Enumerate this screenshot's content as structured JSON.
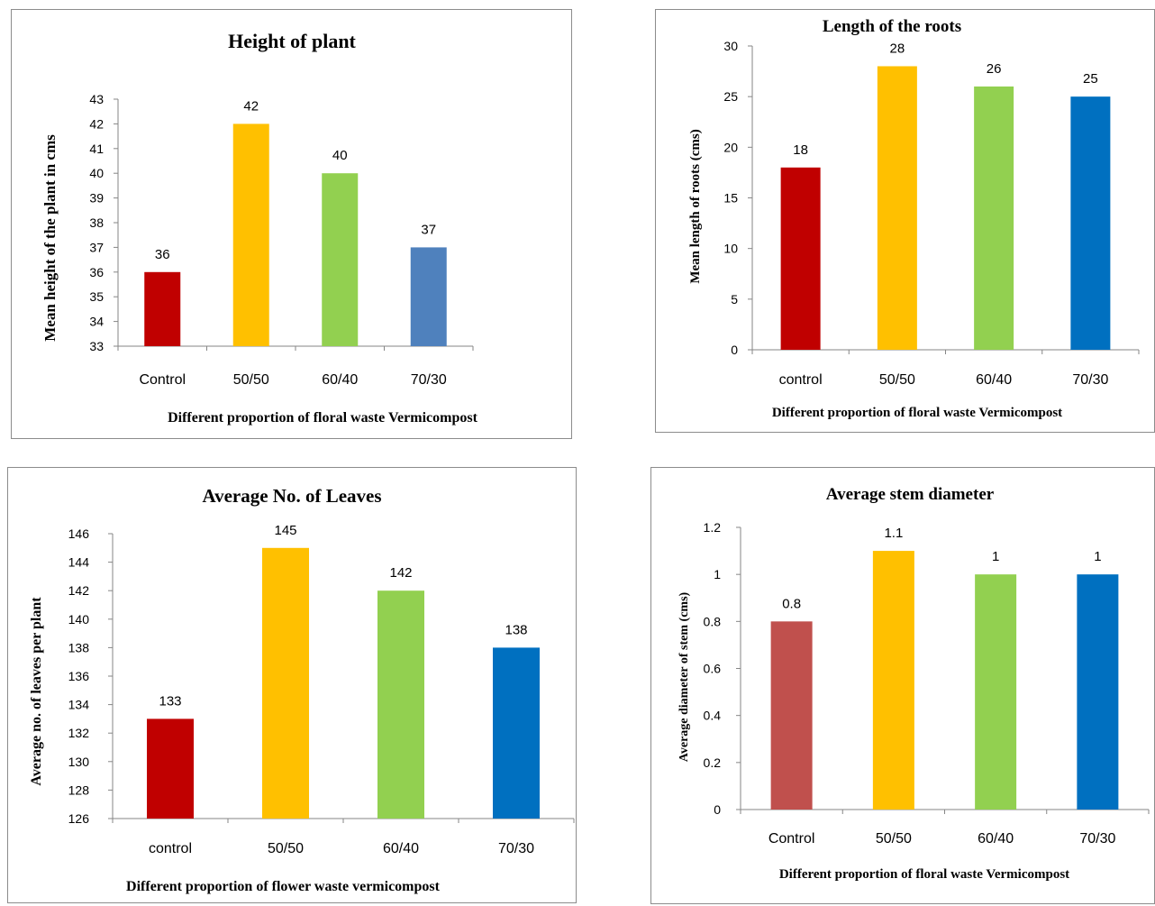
{
  "chart_data": [
    {
      "type": "bar",
      "title": "Height of plant",
      "xlabel": "Different proportion of floral waste Vermicompost",
      "ylabel": "Mean  height of the plant  in cms",
      "categories": [
        "Control",
        "50/50",
        "60/40",
        "70/30"
      ],
      "values": [
        36,
        42,
        40,
        37
      ],
      "data_labels": [
        "36",
        "42",
        "40",
        "37"
      ],
      "colors": [
        "#C00000",
        "#FFC000",
        "#92D050",
        "#4F81BD"
      ],
      "ylim": [
        33,
        43
      ],
      "yticks": [
        "33",
        "34",
        "35",
        "36",
        "37",
        "38",
        "39",
        "40",
        "41",
        "42",
        "43"
      ],
      "grid": false
    },
    {
      "type": "bar",
      "title": "Length of the roots",
      "xlabel": "Different  proportion  of floral waste Vermicompost",
      "ylabel": "Mean  length of roots (cms)",
      "categories": [
        "control",
        "50/50",
        "60/40",
        "70/30"
      ],
      "values": [
        18,
        28,
        26,
        25
      ],
      "data_labels": [
        "18",
        "28",
        "26",
        "25"
      ],
      "colors": [
        "#C00000",
        "#FFC000",
        "#92D050",
        "#0070C0"
      ],
      "ylim": [
        0,
        30
      ],
      "yticks": [
        "0",
        "5",
        "10",
        "15",
        "20",
        "25",
        "30"
      ],
      "grid": false
    },
    {
      "type": "bar",
      "title": "Average No. of Leaves",
      "xlabel": "Different proportion of flower waste vermicompost",
      "ylabel": "Average no. of leaves per plant",
      "categories": [
        "control",
        "50/50",
        "60/40",
        "70/30"
      ],
      "values": [
        133,
        145,
        142,
        138
      ],
      "data_labels": [
        "133",
        "145",
        "142",
        "138"
      ],
      "colors": [
        "#C00000",
        "#FFC000",
        "#92D050",
        "#0070C0"
      ],
      "ylim": [
        126,
        146
      ],
      "yticks": [
        "126",
        "128",
        "130",
        "132",
        "134",
        "136",
        "138",
        "140",
        "142",
        "144",
        "146"
      ],
      "grid": false
    },
    {
      "type": "bar",
      "title": "Average stem diameter",
      "xlabel": "Different proportion of floral waste Vermicompost",
      "ylabel": "Average diameter of stem (cms)",
      "categories": [
        "Control",
        "50/50",
        "60/40",
        "70/30"
      ],
      "values": [
        0.8,
        1.1,
        1,
        1
      ],
      "data_labels": [
        "0.8",
        "1.1",
        "1",
        "1"
      ],
      "colors": [
        "#C0504D",
        "#FFC000",
        "#92D050",
        "#0070C0"
      ],
      "ylim": [
        0,
        1.2
      ],
      "yticks": [
        "0",
        "0.2",
        "0.4",
        "0.6",
        "0.8",
        "1",
        "1.2"
      ],
      "grid": false
    }
  ]
}
